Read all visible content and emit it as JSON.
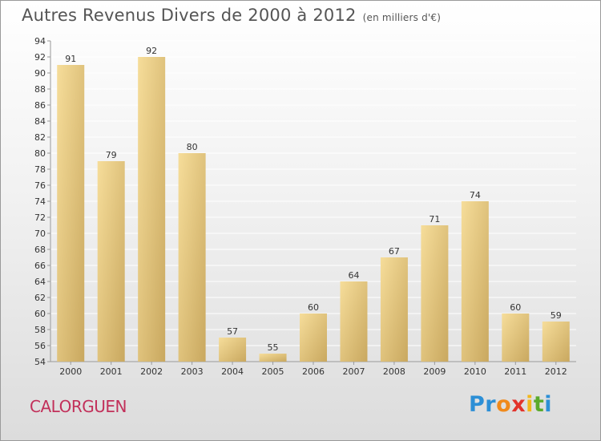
{
  "header": {
    "title": "Autres Revenus Divers de 2000 à 2012",
    "subtitle": "(en milliers d'€)"
  },
  "commune": "CALORGUEN",
  "logo": {
    "text": "Proxiti",
    "letters": [
      {
        "ch": "P",
        "color": "#2c8fd6"
      },
      {
        "ch": "r",
        "color": "#2c8fd6"
      },
      {
        "ch": "o",
        "color": "#f08a1c"
      },
      {
        "ch": "x",
        "color": "#e2332b"
      },
      {
        "ch": "i",
        "color": "#f3b71b"
      },
      {
        "ch": "t",
        "color": "#5aaa2c"
      },
      {
        "ch": "i",
        "color": "#2c8fd6"
      }
    ]
  },
  "colors": {
    "bar_top": "#f6dd9a",
    "bar_bottom": "#c9a85f",
    "grid": "#ffffff",
    "axis_text": "#333333"
  },
  "chart_data": {
    "type": "bar",
    "categories": [
      "2000",
      "2001",
      "2002",
      "2003",
      "2004",
      "2005",
      "2006",
      "2007",
      "2008",
      "2009",
      "2010",
      "2011",
      "2012"
    ],
    "values": [
      91,
      79,
      92,
      80,
      57,
      55,
      60,
      64,
      67,
      71,
      74,
      60,
      59
    ],
    "ylim": [
      54,
      94
    ],
    "yticks": [
      54,
      56,
      58,
      60,
      62,
      64,
      66,
      68,
      70,
      72,
      74,
      76,
      78,
      80,
      82,
      84,
      86,
      88,
      90,
      92,
      94
    ],
    "grid": "horizontal",
    "data_labels": true
  }
}
